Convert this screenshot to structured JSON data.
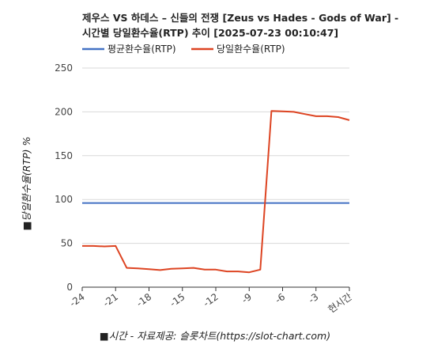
{
  "chart_data": {
    "type": "line",
    "title_line1": "제우스 VS 하데스 – 신들의 전쟁 [Zeus vs Hades - Gods of War] -",
    "title_line2": "시간별 당일환수율(RTP) 추이 [2025-07-23 00:10:47]",
    "xlabel": "■시간 - 자료제공: 슬롯차트(https://slot-chart.com)",
    "ylabel": "■당일환수율(RTP) %",
    "ylim": [
      0,
      250
    ],
    "yticks": [
      "0",
      "50",
      "100",
      "150",
      "200",
      "250"
    ],
    "xlim": [
      -24,
      0
    ],
    "xticks": [
      {
        "x": -24,
        "label": "-24"
      },
      {
        "x": -21,
        "label": "-21"
      },
      {
        "x": -18,
        "label": "-18"
      },
      {
        "x": -15,
        "label": "-15"
      },
      {
        "x": -12,
        "label": "-12"
      },
      {
        "x": -9,
        "label": "-9"
      },
      {
        "x": -6,
        "label": "-6"
      },
      {
        "x": -3,
        "label": "-3"
      },
      {
        "x": 0,
        "label": "현시간"
      }
    ],
    "grid": true,
    "legend_position": "top",
    "series": [
      {
        "name": "평균환수율(RTP)",
        "color": "#4472c4",
        "x": [
          -24,
          0
        ],
        "values": [
          96,
          96
        ]
      },
      {
        "name": "당일환수율(RTP)",
        "color": "#dd4422",
        "x": [
          -24,
          -23,
          -22,
          -21,
          -20,
          -19,
          -18,
          -17,
          -16,
          -15,
          -14,
          -13,
          -12,
          -11,
          -10,
          -9,
          -8,
          -7,
          -6,
          -5,
          -4,
          -3,
          -2,
          -1,
          0
        ],
        "values": [
          47,
          47,
          46.5,
          47,
          22,
          21.5,
          20.5,
          19.5,
          21,
          21.5,
          22,
          20,
          20,
          18,
          18,
          17,
          20,
          201,
          200.5,
          200,
          197.5,
          195,
          195,
          194,
          190.5
        ]
      }
    ]
  }
}
